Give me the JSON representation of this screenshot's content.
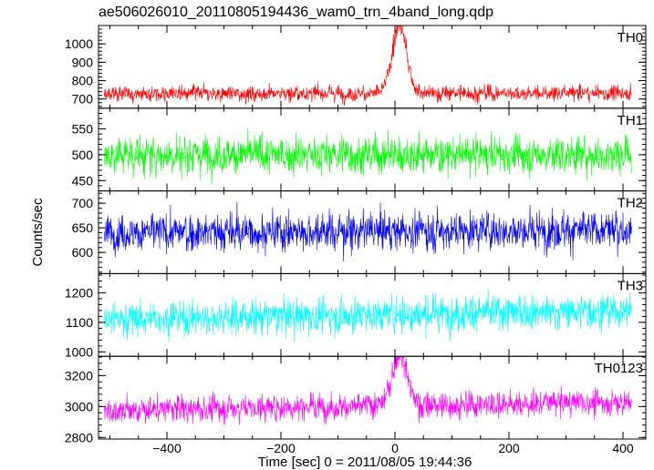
{
  "chart_data": {
    "type": "line",
    "title": "ae506026010_20110805194436_wam0_trn_4band_long.qdp",
    "xlabel": "Time [sec] 0 = 2011/08/05 19:44:36",
    "ylabel": "Counts/sec",
    "xlim": [
      -520,
      440
    ],
    "xticks": [
      -400,
      -200,
      0,
      200,
      400
    ],
    "x_range": [
      -510,
      415
    ],
    "panels": [
      {
        "name": "TH0",
        "color": "#ff0000",
        "ylim": [
          650,
          1100
        ],
        "yticks": [
          700,
          800,
          900,
          1000
        ],
        "baseline": 728,
        "noise": 28,
        "trend": 5,
        "burst": {
          "t": 8,
          "peak": 1100,
          "width": 18
        }
      },
      {
        "name": "TH1",
        "color": "#00ff00",
        "ylim": [
          430,
          590
        ],
        "yticks": [
          450,
          500,
          550
        ],
        "baseline": 500,
        "noise": 24,
        "trend": 0,
        "burst": null
      },
      {
        "name": "TH2",
        "color": "#0000ff",
        "ylim": [
          557,
          725
        ],
        "yticks": [
          600,
          650,
          700
        ],
        "baseline": 640,
        "noise": 25,
        "trend": 6,
        "burst": null
      },
      {
        "name": "TH3",
        "color": "#00ffff",
        "ylim": [
          985,
          1265
        ],
        "yticks": [
          1000,
          1100,
          1200
        ],
        "baseline": 1110,
        "noise": 38,
        "trend": 30,
        "burst": null
      },
      {
        "name": "TH0123",
        "color": "#ff00ff",
        "ylim": [
          2790,
          3325
        ],
        "yticks": [
          2800,
          3000,
          3200
        ],
        "baseline": 2975,
        "noise": 55,
        "trend": 55,
        "burst": {
          "t": 8,
          "peak": 3320,
          "width": 18
        }
      }
    ]
  }
}
